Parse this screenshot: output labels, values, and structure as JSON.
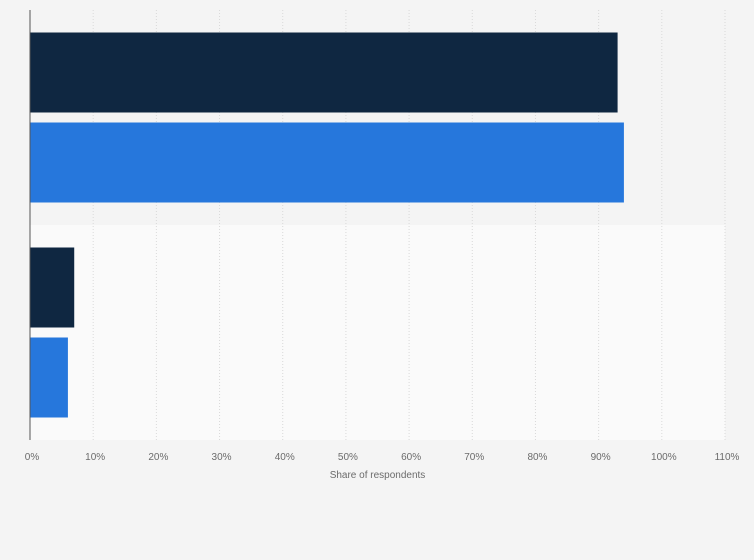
{
  "chart_data": {
    "type": "bar",
    "orientation": "horizontal",
    "categories": [
      "",
      ""
    ],
    "series": [
      {
        "values": [
          93,
          7
        ],
        "color": "#0f2741"
      },
      {
        "values": [
          94,
          6
        ],
        "color": "#2677dc"
      }
    ],
    "xlabel": "Share of respondents",
    "ylabel": "",
    "xlim": [
      0,
      110
    ],
    "tick_values": [
      0,
      10,
      20,
      30,
      40,
      50,
      60,
      70,
      80,
      90,
      100,
      110
    ],
    "tick_labels": [
      "0%",
      "10%",
      "20%",
      "30%",
      "40%",
      "50%",
      "60%",
      "70%",
      "80%",
      "90%",
      "100%",
      "110%"
    ],
    "grid": true,
    "legend": "none",
    "band_colors": [
      "#f4f4f4",
      "#fafafa"
    ],
    "page_background": "#f4f4f4"
  }
}
